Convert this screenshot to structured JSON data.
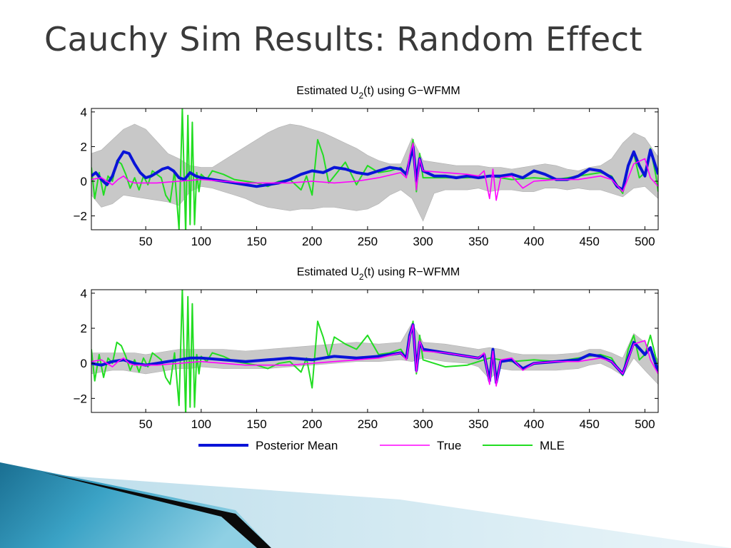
{
  "slide": {
    "title": "Cauchy Sim Results: Random Effect"
  },
  "legend": {
    "entries": [
      {
        "label": "Posterior Mean",
        "color": "#0a14d8"
      },
      {
        "label": "True",
        "color": "#ff00ff"
      },
      {
        "label": "MLE",
        "color": "#22dd22"
      }
    ]
  },
  "colors": {
    "band": "#c8c8c8",
    "posterior_mean": "#0a14d8",
    "true": "#ff00ff",
    "mle": "#22dd22"
  },
  "chart_data": [
    {
      "type": "line",
      "title_main": "Estimated U",
      "title_sub": "2",
      "title_rest": "(t) using G−WFMM",
      "xlim": [
        1,
        512
      ],
      "ylim": [
        -2.8,
        4.2
      ],
      "xticks": [
        50,
        100,
        150,
        200,
        250,
        300,
        350,
        400,
        450,
        500
      ],
      "yticks": [
        4,
        2,
        0,
        -2
      ],
      "ytick_labels": [
        "4",
        "2",
        "0",
        "−2"
      ],
      "grid": false,
      "band": {
        "name": "credible band",
        "x": [
          1,
          10,
          20,
          30,
          40,
          50,
          60,
          70,
          80,
          90,
          100,
          110,
          120,
          130,
          140,
          150,
          160,
          170,
          180,
          190,
          200,
          210,
          220,
          230,
          240,
          250,
          260,
          270,
          280,
          290,
          300,
          310,
          320,
          330,
          340,
          350,
          360,
          370,
          380,
          390,
          400,
          410,
          420,
          430,
          440,
          450,
          460,
          470,
          480,
          490,
          500,
          512
        ],
        "lower": [
          -0.8,
          -1.5,
          -1.3,
          -0.8,
          -0.9,
          -1.0,
          -1.1,
          -1.2,
          -1.4,
          -0.6,
          -0.3,
          -0.4,
          -0.6,
          -0.8,
          -1.0,
          -1.3,
          -1.5,
          -1.6,
          -1.7,
          -1.6,
          -1.6,
          -1.5,
          -1.5,
          -1.6,
          -1.7,
          -1.6,
          -1.3,
          -0.8,
          -0.5,
          -1.0,
          -2.3,
          -0.7,
          -0.5,
          -0.5,
          -0.5,
          -0.4,
          -0.6,
          -0.5,
          -0.5,
          -0.6,
          -0.6,
          -0.4,
          -0.4,
          -0.5,
          -0.4,
          -0.5,
          -0.5,
          -0.7,
          -0.9,
          -0.4,
          -0.3,
          -1.0
        ],
        "upper": [
          1.6,
          1.8,
          2.4,
          3.0,
          3.3,
          3.0,
          2.3,
          1.6,
          1.3,
          0.9,
          0.8,
          0.8,
          1.2,
          1.6,
          2.0,
          2.4,
          2.8,
          3.1,
          3.3,
          3.2,
          3.0,
          2.8,
          2.5,
          2.2,
          1.9,
          1.5,
          1.2,
          1.0,
          1.0,
          2.5,
          1.2,
          1.1,
          1.0,
          0.9,
          0.9,
          0.9,
          0.8,
          0.8,
          0.7,
          0.8,
          0.9,
          1.0,
          0.9,
          0.7,
          0.6,
          0.8,
          0.9,
          1.3,
          2.2,
          2.8,
          2.5,
          1.4
        ]
      },
      "series": [
        {
          "name": "Posterior Mean",
          "x": [
            1,
            5,
            10,
            15,
            20,
            25,
            30,
            35,
            40,
            45,
            50,
            55,
            60,
            65,
            70,
            75,
            80,
            85,
            90,
            95,
            100,
            110,
            120,
            130,
            140,
            150,
            160,
            170,
            180,
            190,
            200,
            210,
            220,
            230,
            240,
            250,
            260,
            270,
            280,
            285,
            288,
            291,
            294,
            297,
            300,
            310,
            320,
            330,
            340,
            350,
            360,
            370,
            380,
            390,
            400,
            410,
            420,
            430,
            440,
            450,
            460,
            470,
            475,
            480,
            485,
            490,
            495,
            500,
            505,
            512
          ],
          "y": [
            0.3,
            0.5,
            0.1,
            -0.2,
            0.3,
            1.2,
            1.7,
            1.6,
            1.0,
            0.5,
            0.2,
            0.3,
            0.5,
            0.7,
            0.8,
            0.6,
            0.2,
            0.1,
            0.5,
            0.3,
            0.2,
            0.1,
            0.0,
            -0.1,
            -0.2,
            -0.3,
            -0.2,
            -0.1,
            0.1,
            0.4,
            0.6,
            0.5,
            0.8,
            0.7,
            0.5,
            0.4,
            0.6,
            0.8,
            0.7,
            0.4,
            1.2,
            2.0,
            0.0,
            1.3,
            0.6,
            0.3,
            0.3,
            0.2,
            0.3,
            0.2,
            0.3,
            0.3,
            0.4,
            0.2,
            0.6,
            0.4,
            0.1,
            0.1,
            0.3,
            0.7,
            0.6,
            0.2,
            -0.3,
            -0.5,
            0.9,
            1.7,
            0.9,
            0.3,
            1.8,
            0.4
          ]
        },
        {
          "name": "True",
          "x": [
            1,
            10,
            20,
            25,
            30,
            35,
            40,
            60,
            80,
            100,
            120,
            140,
            160,
            180,
            200,
            220,
            240,
            260,
            280,
            285,
            288,
            291,
            294,
            297,
            300,
            320,
            340,
            350,
            355,
            360,
            363,
            366,
            370,
            380,
            390,
            400,
            420,
            440,
            460,
            470,
            480,
            490,
            500,
            505,
            512
          ],
          "y": [
            0.1,
            0.2,
            -0.2,
            0.1,
            0.3,
            0.0,
            -0.1,
            -0.1,
            0.0,
            0.1,
            0.0,
            -0.1,
            -0.1,
            -0.1,
            0.0,
            -0.1,
            0.0,
            0.2,
            0.5,
            0.2,
            1.5,
            2.2,
            -0.5,
            1.3,
            0.6,
            0.5,
            0.4,
            0.3,
            0.6,
            -1.0,
            0.7,
            -1.1,
            0.2,
            0.3,
            -0.4,
            0.0,
            0.1,
            0.1,
            0.3,
            0.1,
            -0.6,
            1.0,
            1.3,
            0.2,
            -0.3
          ]
        },
        {
          "name": "MLE",
          "x": [
            1,
            4,
            8,
            12,
            16,
            20,
            24,
            28,
            32,
            36,
            40,
            44,
            48,
            52,
            56,
            60,
            64,
            68,
            72,
            76,
            80,
            83,
            86,
            88,
            90,
            92,
            94,
            96,
            98,
            100,
            105,
            110,
            120,
            130,
            140,
            150,
            160,
            170,
            180,
            190,
            195,
            200,
            205,
            210,
            215,
            220,
            230,
            240,
            250,
            260,
            270,
            280,
            285,
            288,
            291,
            294,
            297,
            300,
            320,
            340,
            360,
            380,
            400,
            420,
            440,
            460,
            470,
            475,
            480,
            485,
            490,
            495,
            500,
            505,
            510,
            512
          ],
          "y": [
            0.8,
            -1.0,
            0.5,
            -0.8,
            0.3,
            0.0,
            1.2,
            1.0,
            0.4,
            -0.4,
            0.2,
            -0.5,
            0.3,
            -0.2,
            0.6,
            0.4,
            0.2,
            -0.8,
            -1.2,
            0.6,
            -2.8,
            4.2,
            -3.0,
            3.8,
            -2.5,
            3.4,
            -2.5,
            0.5,
            -0.6,
            0.4,
            0.1,
            0.6,
            0.4,
            0.1,
            0.0,
            -0.1,
            -0.3,
            0.0,
            0.1,
            -0.5,
            0.3,
            -0.8,
            2.4,
            1.5,
            -0.1,
            0.3,
            1.1,
            -0.2,
            0.9,
            0.5,
            0.6,
            0.8,
            0.3,
            1.4,
            2.4,
            -0.6,
            1.6,
            0.2,
            0.2,
            0.2,
            0.3,
            0.1,
            0.2,
            0.1,
            0.3,
            0.5,
            0.3,
            -0.2,
            -0.7,
            0.8,
            1.6,
            0.2,
            0.5,
            1.9,
            0.3,
            -0.6
          ]
        }
      ]
    },
    {
      "type": "line",
      "title_main": "Estimated U",
      "title_sub": "2",
      "title_rest": "(t) using R−WFMM",
      "xlim": [
        1,
        512
      ],
      "ylim": [
        -2.8,
        4.2
      ],
      "xticks": [
        50,
        100,
        150,
        200,
        250,
        300,
        350,
        400,
        450,
        500
      ],
      "yticks": [
        4,
        2,
        0,
        -2
      ],
      "ytick_labels": [
        "4",
        "2",
        "0",
        "−2"
      ],
      "grid": false,
      "band": {
        "name": "credible band",
        "x": [
          1,
          10,
          20,
          30,
          40,
          50,
          60,
          70,
          80,
          90,
          100,
          120,
          140,
          160,
          180,
          200,
          220,
          240,
          260,
          280,
          290,
          300,
          320,
          340,
          350,
          360,
          370,
          380,
          390,
          400,
          420,
          440,
          450,
          460,
          470,
          480,
          490,
          500,
          512
        ],
        "lower": [
          -0.6,
          -0.5,
          -0.4,
          -0.4,
          -0.5,
          -0.6,
          -0.5,
          -0.4,
          -0.3,
          -0.3,
          -0.2,
          -0.3,
          -0.3,
          -0.3,
          -0.2,
          -0.1,
          0.0,
          0.1,
          0.1,
          0.2,
          0.1,
          0.3,
          0.1,
          0.0,
          -0.2,
          -0.9,
          -0.3,
          -0.4,
          -0.4,
          -0.4,
          -0.4,
          -0.3,
          -0.1,
          0.0,
          -0.3,
          -0.7,
          0.3,
          -0.4,
          -1.2
        ],
        "upper": [
          0.6,
          0.6,
          0.6,
          0.6,
          0.6,
          0.5,
          0.6,
          0.7,
          0.8,
          0.8,
          0.8,
          0.8,
          0.7,
          0.8,
          0.9,
          1.0,
          1.1,
          1.2,
          1.1,
          1.2,
          2.3,
          1.2,
          1.1,
          0.9,
          0.8,
          0.9,
          0.8,
          0.6,
          0.5,
          0.5,
          0.5,
          0.6,
          0.8,
          0.8,
          0.6,
          0.3,
          1.7,
          1.2,
          0.2
        ]
      },
      "series": [
        {
          "name": "Posterior Mean",
          "x": [
            1,
            10,
            20,
            30,
            40,
            50,
            60,
            70,
            80,
            90,
            100,
            120,
            140,
            160,
            180,
            200,
            220,
            240,
            260,
            280,
            285,
            288,
            291,
            294,
            297,
            300,
            320,
            340,
            350,
            355,
            360,
            363,
            366,
            370,
            380,
            390,
            400,
            420,
            440,
            450,
            460,
            470,
            480,
            490,
            500,
            505,
            512
          ],
          "y": [
            0.0,
            -0.1,
            0.1,
            0.2,
            0.0,
            -0.1,
            0.0,
            0.1,
            0.2,
            0.3,
            0.3,
            0.2,
            0.1,
            0.2,
            0.3,
            0.2,
            0.4,
            0.3,
            0.4,
            0.6,
            0.3,
            1.6,
            2.2,
            -0.4,
            1.2,
            0.8,
            0.6,
            0.4,
            0.3,
            0.5,
            -1.0,
            0.8,
            -1.1,
            0.1,
            0.2,
            -0.3,
            0.0,
            0.1,
            0.2,
            0.5,
            0.4,
            0.1,
            -0.6,
            1.2,
            0.5,
            0.9,
            -0.5
          ]
        },
        {
          "name": "True",
          "x": [
            1,
            10,
            20,
            25,
            30,
            35,
            40,
            60,
            80,
            100,
            120,
            140,
            160,
            180,
            200,
            220,
            240,
            260,
            280,
            285,
            288,
            291,
            294,
            297,
            300,
            320,
            340,
            350,
            355,
            360,
            363,
            366,
            370,
            380,
            390,
            400,
            420,
            440,
            460,
            470,
            480,
            490,
            500,
            505,
            512
          ],
          "y": [
            0.1,
            0.2,
            -0.2,
            0.1,
            0.3,
            0.0,
            -0.1,
            -0.1,
            0.0,
            0.1,
            0.0,
            -0.1,
            -0.1,
            -0.1,
            0.0,
            0.1,
            0.2,
            0.3,
            0.6,
            0.2,
            1.5,
            2.2,
            -0.5,
            1.3,
            0.7,
            0.6,
            0.4,
            0.3,
            0.6,
            -1.2,
            0.7,
            -1.3,
            0.2,
            0.3,
            -0.4,
            0.0,
            0.1,
            0.1,
            0.3,
            0.1,
            -0.6,
            1.1,
            1.3,
            0.2,
            -0.6
          ]
        },
        {
          "name": "MLE",
          "x": [
            1,
            4,
            8,
            12,
            16,
            20,
            24,
            28,
            32,
            36,
            40,
            44,
            48,
            52,
            56,
            60,
            64,
            68,
            72,
            76,
            80,
            83,
            86,
            88,
            90,
            92,
            94,
            96,
            98,
            100,
            105,
            110,
            120,
            130,
            140,
            150,
            160,
            170,
            180,
            190,
            195,
            200,
            205,
            210,
            215,
            220,
            230,
            240,
            250,
            260,
            270,
            280,
            285,
            288,
            291,
            294,
            297,
            300,
            320,
            340,
            360,
            380,
            400,
            420,
            440,
            460,
            470,
            475,
            480,
            485,
            490,
            495,
            500,
            505,
            510,
            512
          ],
          "y": [
            0.8,
            -1.0,
            0.5,
            -0.8,
            0.3,
            0.0,
            1.2,
            1.0,
            0.4,
            -0.4,
            0.2,
            -0.5,
            0.3,
            -0.2,
            0.6,
            0.4,
            0.2,
            -0.8,
            -1.2,
            0.6,
            -2.4,
            4.2,
            -3.0,
            3.8,
            -2.5,
            3.4,
            -2.5,
            0.5,
            -0.6,
            0.4,
            0.1,
            0.6,
            0.4,
            0.1,
            0.0,
            -0.1,
            -0.3,
            0.0,
            0.1,
            -0.5,
            0.3,
            -1.4,
            2.4,
            1.5,
            0.3,
            1.5,
            1.1,
            0.8,
            1.6,
            0.5,
            0.6,
            0.8,
            0.3,
            1.4,
            2.4,
            -0.6,
            1.6,
            0.2,
            -0.2,
            -0.1,
            0.3,
            0.1,
            0.2,
            0.1,
            0.3,
            0.5,
            0.3,
            -0.2,
            -0.7,
            0.8,
            1.6,
            0.2,
            0.5,
            1.6,
            0.3,
            -0.6
          ]
        }
      ]
    }
  ]
}
